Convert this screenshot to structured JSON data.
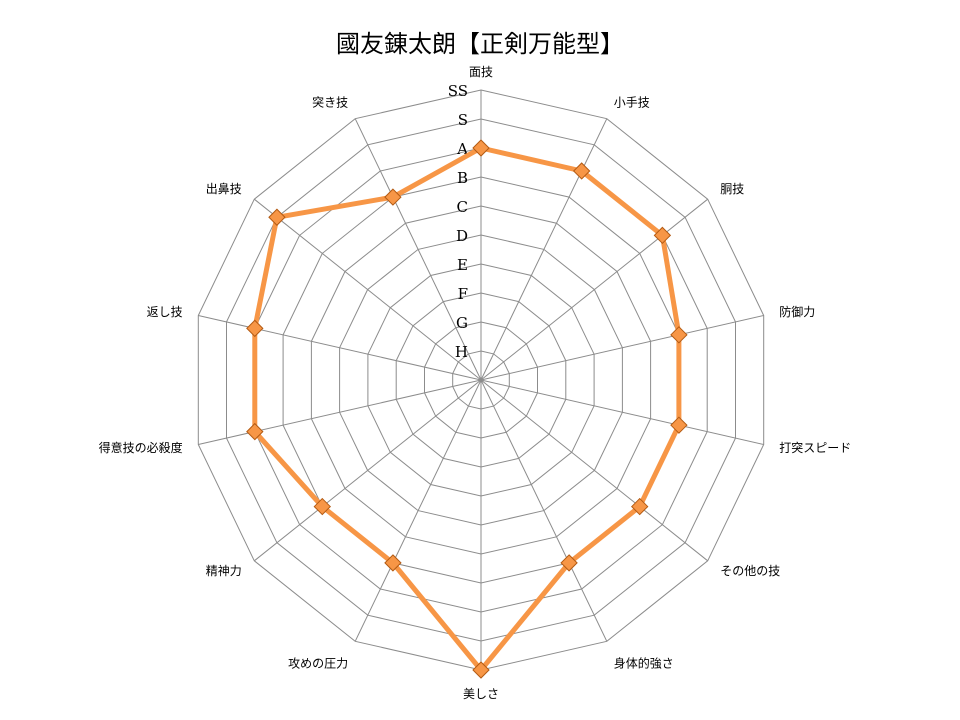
{
  "chart_data": {
    "type": "radar",
    "title": "國友錬太朗【正剣万能型】",
    "axes": [
      "面技",
      "小手技",
      "胴技",
      "防御力",
      "打突スピード",
      "その他の技",
      "身体的強さ",
      "美しさ",
      "攻めの圧力",
      "精神力",
      "得意技の必殺度",
      "返し技",
      "出鼻技",
      "突き技"
    ],
    "scale": [
      "H",
      "G",
      "F",
      "E",
      "D",
      "C",
      "B",
      "A",
      "S",
      "SS"
    ],
    "scale_range": [
      0,
      10
    ],
    "grid": true,
    "legend": "none",
    "series": [
      {
        "values": [
          8,
          8,
          8,
          7,
          7,
          7,
          7,
          10,
          7,
          7,
          8,
          8,
          9,
          7
        ]
      }
    ],
    "colors": {
      "series": "#f79646",
      "marker_edge": "#b35a12",
      "grid": "#8c8c8c"
    }
  }
}
